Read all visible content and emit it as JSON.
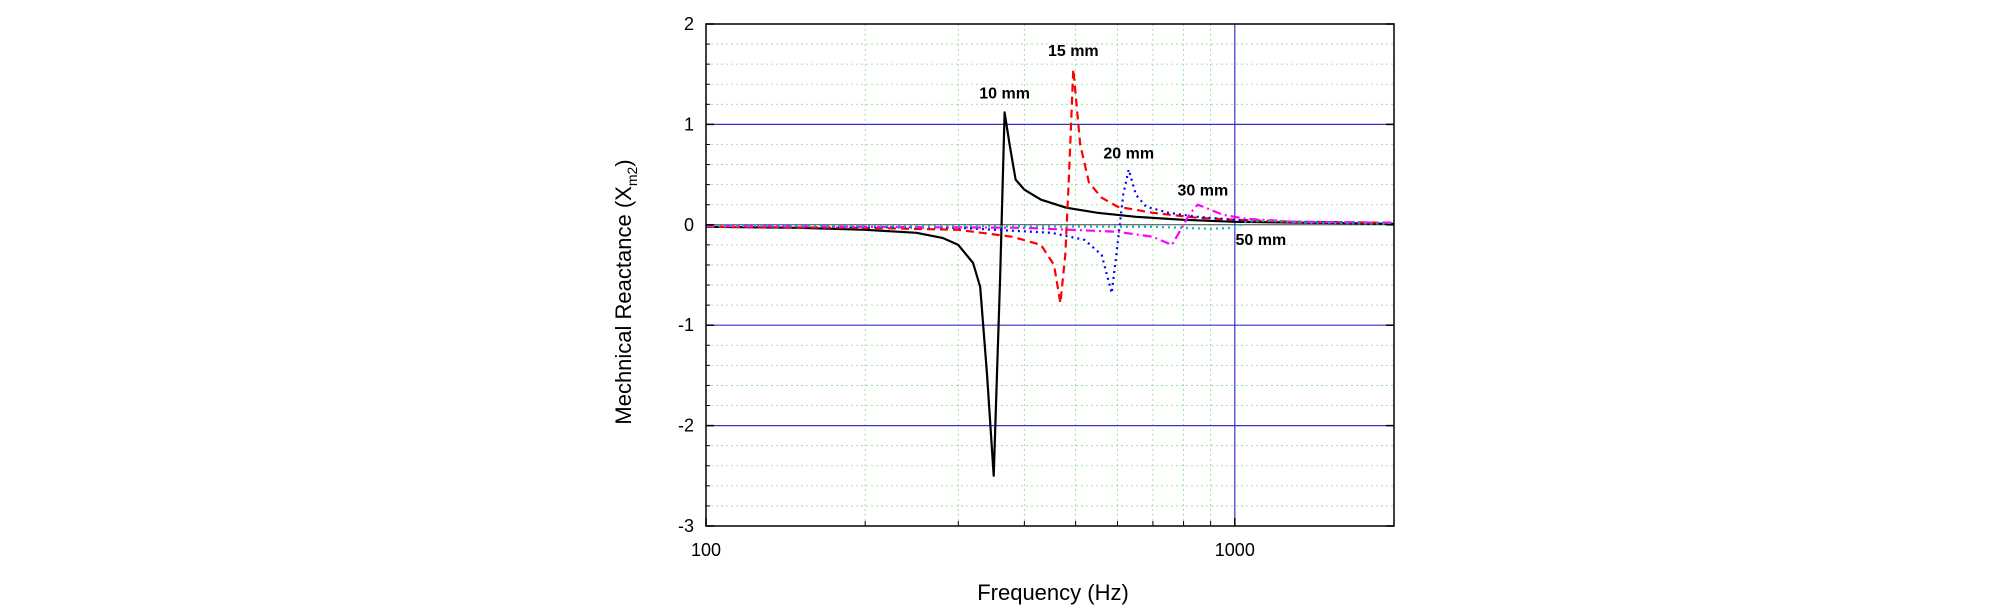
{
  "chart_data": {
    "type": "line",
    "xlabel": "Frequency (Hz)",
    "ylabel_main": "Mechnical Reactance (X",
    "ylabel_sub": "m2",
    "ylabel_close": ")",
    "xscale": "log",
    "xlim": [
      100,
      2000
    ],
    "ylim": [
      -3,
      2
    ],
    "xticks": [
      100,
      1000
    ],
    "xtick_labels": [
      "100",
      "1000"
    ],
    "yticks": [
      -3,
      -2,
      -1,
      0,
      1,
      2
    ],
    "ytick_labels": [
      "-3",
      "-2",
      "-1",
      "0",
      "1",
      "2"
    ],
    "major_grid_y": [
      -2,
      -1,
      1
    ],
    "major_grid_x": [
      1000
    ],
    "grid": true,
    "series": [
      {
        "color": "#000000",
        "dash": "solid",
        "points": [
          [
            100,
            -0.02
          ],
          [
            150,
            -0.03
          ],
          [
            200,
            -0.05
          ],
          [
            250,
            -0.08
          ],
          [
            280,
            -0.13
          ],
          [
            300,
            -0.2
          ],
          [
            320,
            -0.38
          ],
          [
            330,
            -0.62
          ],
          [
            340,
            -1.5
          ],
          [
            350,
            -2.5
          ],
          [
            360,
            -0.5
          ],
          [
            367,
            1.12
          ],
          [
            375,
            0.8
          ],
          [
            385,
            0.45
          ],
          [
            400,
            0.35
          ],
          [
            430,
            0.25
          ],
          [
            480,
            0.17
          ],
          [
            550,
            0.12
          ],
          [
            650,
            0.08
          ],
          [
            800,
            0.05
          ],
          [
            1000,
            0.03
          ],
          [
            1400,
            0.02
          ],
          [
            2000,
            0.01
          ]
        ]
      },
      {
        "color": "#ff0000",
        "dash": "dashed",
        "points": [
          [
            100,
            -0.02
          ],
          [
            200,
            -0.03
          ],
          [
            300,
            -0.05
          ],
          [
            380,
            -0.12
          ],
          [
            430,
            -0.2
          ],
          [
            455,
            -0.4
          ],
          [
            468,
            -0.78
          ],
          [
            478,
            -0.3
          ],
          [
            485,
            0.4
          ],
          [
            495,
            1.55
          ],
          [
            510,
            0.8
          ],
          [
            530,
            0.42
          ],
          [
            560,
            0.27
          ],
          [
            600,
            0.18
          ],
          [
            700,
            0.12
          ],
          [
            850,
            0.07
          ],
          [
            1000,
            0.05
          ],
          [
            1300,
            0.03
          ],
          [
            2000,
            0.02
          ]
        ]
      },
      {
        "color": "#0000ff",
        "dash": "dotted",
        "points": [
          [
            100,
            -0.01
          ],
          [
            300,
            -0.03
          ],
          [
            450,
            -0.08
          ],
          [
            520,
            -0.15
          ],
          [
            560,
            -0.3
          ],
          [
            585,
            -0.68
          ],
          [
            600,
            -0.2
          ],
          [
            615,
            0.3
          ],
          [
            630,
            0.55
          ],
          [
            650,
            0.3
          ],
          [
            680,
            0.18
          ],
          [
            750,
            0.12
          ],
          [
            850,
            0.08
          ],
          [
            1000,
            0.05
          ],
          [
            1300,
            0.03
          ],
          [
            2000,
            0.02
          ]
        ]
      },
      {
        "color": "#ff00ff",
        "dash": "dashdot",
        "points": [
          [
            100,
            -0.01
          ],
          [
            400,
            -0.03
          ],
          [
            600,
            -0.07
          ],
          [
            700,
            -0.12
          ],
          [
            760,
            -0.2
          ],
          [
            790,
            -0.05
          ],
          [
            820,
            0.1
          ],
          [
            850,
            0.2
          ],
          [
            880,
            0.17
          ],
          [
            950,
            0.1
          ],
          [
            1050,
            0.06
          ],
          [
            1300,
            0.03
          ],
          [
            2000,
            0.02
          ]
        ]
      },
      {
        "color": "#00bbbb",
        "dash": "dotted",
        "points": [
          [
            100,
            -0.01
          ],
          [
            700,
            -0.02
          ],
          [
            900,
            -0.04
          ],
          [
            1000,
            -0.03
          ],
          [
            1050,
            0.03
          ],
          [
            1150,
            0.04
          ],
          [
            1400,
            0.02
          ],
          [
            2000,
            0.01
          ]
        ]
      }
    ],
    "annotations": [
      {
        "text": "10 mm",
        "x": 367,
        "y": 1.26
      },
      {
        "text": "15 mm",
        "x": 495,
        "y": 1.68
      },
      {
        "text": "20 mm",
        "x": 630,
        "y": 0.66
      },
      {
        "text": "30 mm",
        "x": 870,
        "y": 0.29
      },
      {
        "text": "50 mm",
        "x": 1120,
        "y": -0.2
      }
    ]
  }
}
